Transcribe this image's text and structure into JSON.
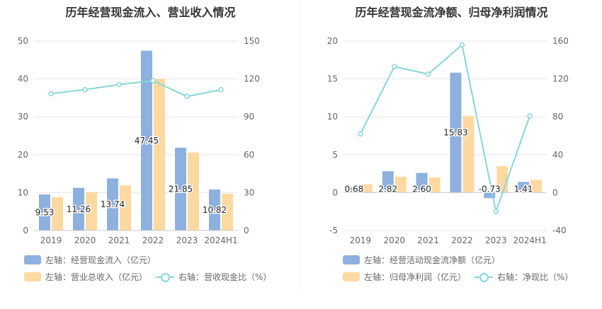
{
  "colors": {
    "bar_primary": "#8eb0de",
    "bar_secondary": "#fdd9a2",
    "line": "#86d6dc",
    "grid": "#e6e6e6"
  },
  "chart_data": [
    {
      "type": "bar",
      "title": "历年经营现金流入、营业收入情况",
      "categories": [
        "2019",
        "2020",
        "2021",
        "2022",
        "2023",
        "2024H1"
      ],
      "y_left": {
        "ylim": [
          0,
          50
        ],
        "ticks": [
          0,
          10,
          20,
          30,
          40,
          50
        ]
      },
      "y_right": {
        "ylim": [
          0,
          150
        ],
        "ticks": [
          0,
          30,
          60,
          90,
          120,
          150
        ]
      },
      "series": [
        {
          "name": "左轴：经营现金流入（亿元）",
          "axis": "left",
          "kind": "bar",
          "values": [
            9.53,
            11.26,
            13.74,
            47.45,
            21.85,
            10.82
          ],
          "labels": [
            "9.53",
            "11.26",
            "13.74",
            "47.45",
            "21.85",
            "10.82"
          ]
        },
        {
          "name": "左轴：营业总收入（亿元）",
          "axis": "left",
          "kind": "bar",
          "values": [
            8.8,
            10.1,
            11.9,
            40.0,
            20.6,
            9.7
          ]
        },
        {
          "name": "右轴：营收现金比（%）",
          "axis": "right",
          "kind": "line",
          "values": [
            108.3,
            111.5,
            115.5,
            118.6,
            106.1,
            111.5
          ]
        }
      ]
    },
    {
      "type": "bar",
      "title": "历年经营现金流净额、归母净利润情况",
      "categories": [
        "2019",
        "2020",
        "2021",
        "2022",
        "2023",
        "2024H1"
      ],
      "y_left": {
        "ylim": [
          -5,
          20
        ],
        "ticks": [
          -5,
          0,
          5,
          10,
          15,
          20
        ]
      },
      "y_right": {
        "ylim": [
          -40,
          160
        ],
        "ticks": [
          -40,
          0,
          40,
          80,
          120,
          160
        ]
      },
      "series": [
        {
          "name": "左轴：经营活动现金流净额（亿元）",
          "axis": "left",
          "kind": "bar",
          "values": [
            0.68,
            2.82,
            2.6,
            15.83,
            -0.73,
            1.41
          ],
          "labels": [
            "0.68",
            "2.82",
            "2.60",
            "15.83",
            "-0.73",
            "1.41"
          ]
        },
        {
          "name": "左轴：归母净利润（亿元）",
          "axis": "left",
          "kind": "bar",
          "values": [
            1.1,
            2.1,
            2.0,
            10.1,
            3.5,
            1.7
          ]
        },
        {
          "name": "右轴：净现比（%）",
          "axis": "right",
          "kind": "line",
          "values": [
            62,
            133,
            125,
            156,
            -20,
            81
          ]
        }
      ]
    }
  ]
}
